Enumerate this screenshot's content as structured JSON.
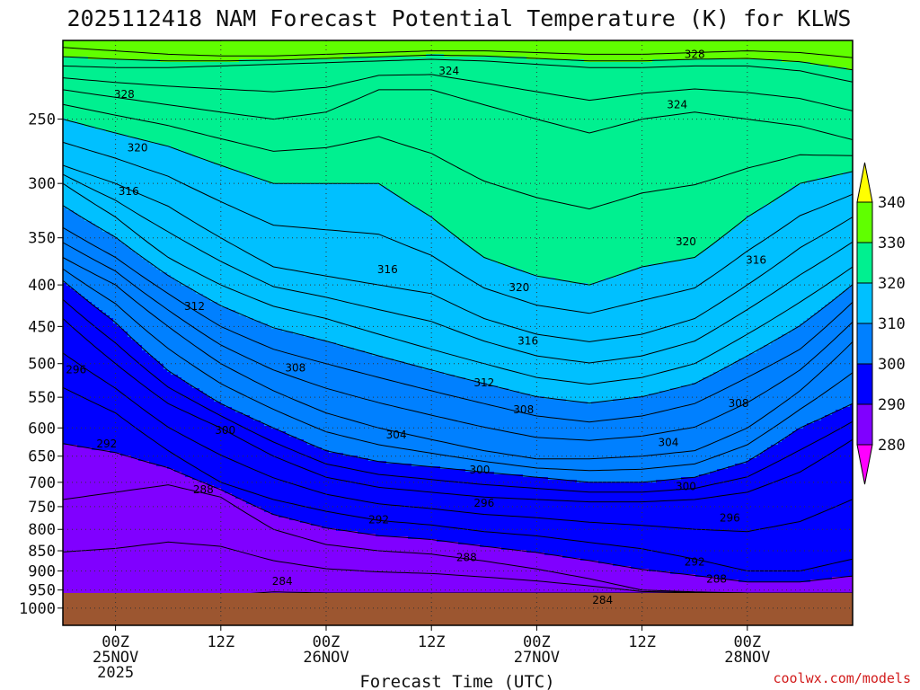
{
  "chart_data": {
    "type": "area",
    "title": "2025112418 NAM Forecast Potential Temperature (K) for KLWS",
    "xlabel": "Forecast Time (UTC)",
    "ylabel": "",
    "credit": "coolwx.com/models",
    "y_scale": "log-pressure (hPa), inverted",
    "ylim": [
      1050,
      200
    ],
    "y_ticks": [
      250,
      300,
      350,
      400,
      450,
      500,
      550,
      600,
      650,
      700,
      750,
      800,
      850,
      900,
      950,
      1000
    ],
    "x_range_hours": [
      -6,
      84
    ],
    "x_ticks": [
      {
        "h": 0,
        "lines": [
          "00Z",
          "25NOV",
          "2025"
        ]
      },
      {
        "h": 12,
        "lines": [
          "12Z"
        ]
      },
      {
        "h": 24,
        "lines": [
          "00Z",
          "26NOV"
        ]
      },
      {
        "h": 36,
        "lines": [
          "12Z"
        ]
      },
      {
        "h": 48,
        "lines": [
          "00Z",
          "27NOV"
        ]
      },
      {
        "h": 60,
        "lines": [
          "12Z"
        ]
      },
      {
        "h": 72,
        "lines": [
          "00Z",
          "28NOV"
        ]
      }
    ],
    "grid": true,
    "surface_pressure_hPa": 958,
    "ground_color": "#9c5630",
    "colorbar": {
      "levels": [
        280,
        290,
        300,
        310,
        320,
        330,
        340
      ],
      "colors": [
        "#ff00ff",
        "#8000ff",
        "#0000ff",
        "#0080ff",
        "#00c0ff",
        "#00f090",
        "#60ff00",
        "#ffff00"
      ]
    },
    "contour_interval": 2,
    "isentropes_K": [
      282,
      284,
      286,
      288,
      290,
      292,
      294,
      296,
      298,
      300,
      302,
      304,
      306,
      308,
      310,
      312,
      314,
      316,
      318,
      320,
      322,
      324,
      326,
      328,
      330,
      332,
      334,
      336,
      338
    ],
    "isentrope_pressure_hPa": {
      "x_hours": [
        -6,
        0,
        6,
        12,
        18,
        24,
        30,
        36,
        42,
        48,
        54,
        60,
        66,
        72,
        78,
        84
      ],
      "theta_284": [
        990,
        990,
        975,
        965,
        955,
        958,
        958,
        958,
        958,
        958,
        958,
        958,
        958,
        958,
        958,
        958
      ],
      "theta_288": [
        735,
        720,
        705,
        730,
        800,
        835,
        850,
        858,
        875,
        895,
        920,
        950,
        955,
        958,
        958,
        958
      ],
      "theta_292": [
        535,
        575,
        640,
        700,
        735,
        760,
        780,
        790,
        805,
        815,
        830,
        845,
        870,
        900,
        900,
        870
      ],
      "theta_296": [
        440,
        500,
        560,
        600,
        650,
        690,
        710,
        720,
        730,
        735,
        740,
        740,
        735,
        720,
        680,
        620
      ],
      "theta_300": [
        395,
        445,
        510,
        560,
        600,
        640,
        660,
        670,
        680,
        690,
        700,
        700,
        690,
        660,
        600,
        560
      ],
      "theta_304": [
        370,
        400,
        450,
        500,
        540,
        575,
        600,
        620,
        640,
        655,
        655,
        650,
        640,
        600,
        540,
        470
      ],
      "theta_308": [
        340,
        370,
        410,
        450,
        480,
        500,
        520,
        540,
        560,
        580,
        590,
        580,
        560,
        520,
        480,
        420
      ],
      "theta_312": [
        300,
        330,
        370,
        400,
        425,
        440,
        460,
        480,
        500,
        520,
        530,
        520,
        500,
        460,
        420,
        380
      ],
      "theta_316": [
        285,
        300,
        320,
        350,
        380,
        390,
        400,
        410,
        440,
        460,
        470,
        460,
        440,
        400,
        360,
        330
      ],
      "theta_320": [
        250,
        260,
        270,
        285,
        300,
        300,
        300,
        330,
        370,
        390,
        400,
        380,
        370,
        330,
        300,
        290
      ],
      "theta_324": [
        230,
        235,
        240,
        245,
        250,
        245,
        230,
        230,
        240,
        250,
        260,
        250,
        245,
        250,
        255,
        265
      ],
      "theta_328": [
        215,
        216,
        216,
        215,
        214,
        213,
        212,
        211,
        212,
        214,
        216,
        216,
        215,
        215,
        218,
        225
      ],
      "theta_332": [
        204,
        206,
        208,
        209,
        209,
        208,
        207,
        206,
        206,
        207,
        208,
        208,
        207,
        206,
        207,
        210
      ]
    },
    "contour_labels": [
      {
        "text": "328",
        "h": 1,
        "p": 233
      },
      {
        "text": "324",
        "h": 38,
        "p": 218
      },
      {
        "text": "328",
        "h": 66,
        "p": 208
      },
      {
        "text": "324",
        "h": 64,
        "p": 240
      },
      {
        "text": "320",
        "h": 2.5,
        "p": 271
      },
      {
        "text": "316",
        "h": 1.5,
        "p": 307
      },
      {
        "text": "320",
        "h": 65,
        "p": 354
      },
      {
        "text": "316",
        "h": 73,
        "p": 373
      },
      {
        "text": "316",
        "h": 31,
        "p": 383
      },
      {
        "text": "320",
        "h": 46,
        "p": 403
      },
      {
        "text": "312",
        "h": 9,
        "p": 425
      },
      {
        "text": "316",
        "h": 47,
        "p": 469
      },
      {
        "text": "296",
        "h": -4.5,
        "p": 509
      },
      {
        "text": "308",
        "h": 20.5,
        "p": 506
      },
      {
        "text": "312",
        "h": 42,
        "p": 528
      },
      {
        "text": "308",
        "h": 46.5,
        "p": 570
      },
      {
        "text": "308",
        "h": 71,
        "p": 560
      },
      {
        "text": "300",
        "h": 12.5,
        "p": 604
      },
      {
        "text": "292",
        "h": -1,
        "p": 628
      },
      {
        "text": "304",
        "h": 32,
        "p": 612
      },
      {
        "text": "304",
        "h": 63,
        "p": 625
      },
      {
        "text": "300",
        "h": 41.5,
        "p": 676
      },
      {
        "text": "288",
        "h": 10,
        "p": 715
      },
      {
        "text": "300",
        "h": 65,
        "p": 708
      },
      {
        "text": "296",
        "h": 42,
        "p": 743
      },
      {
        "text": "292",
        "h": 30,
        "p": 778
      },
      {
        "text": "296",
        "h": 70,
        "p": 774
      },
      {
        "text": "288",
        "h": 40,
        "p": 866
      },
      {
        "text": "292",
        "h": 66,
        "p": 877
      },
      {
        "text": "288",
        "h": 68.5,
        "p": 921
      },
      {
        "text": "284",
        "h": 19,
        "p": 927
      },
      {
        "text": "284",
        "h": 55.5,
        "p": 978
      }
    ]
  }
}
